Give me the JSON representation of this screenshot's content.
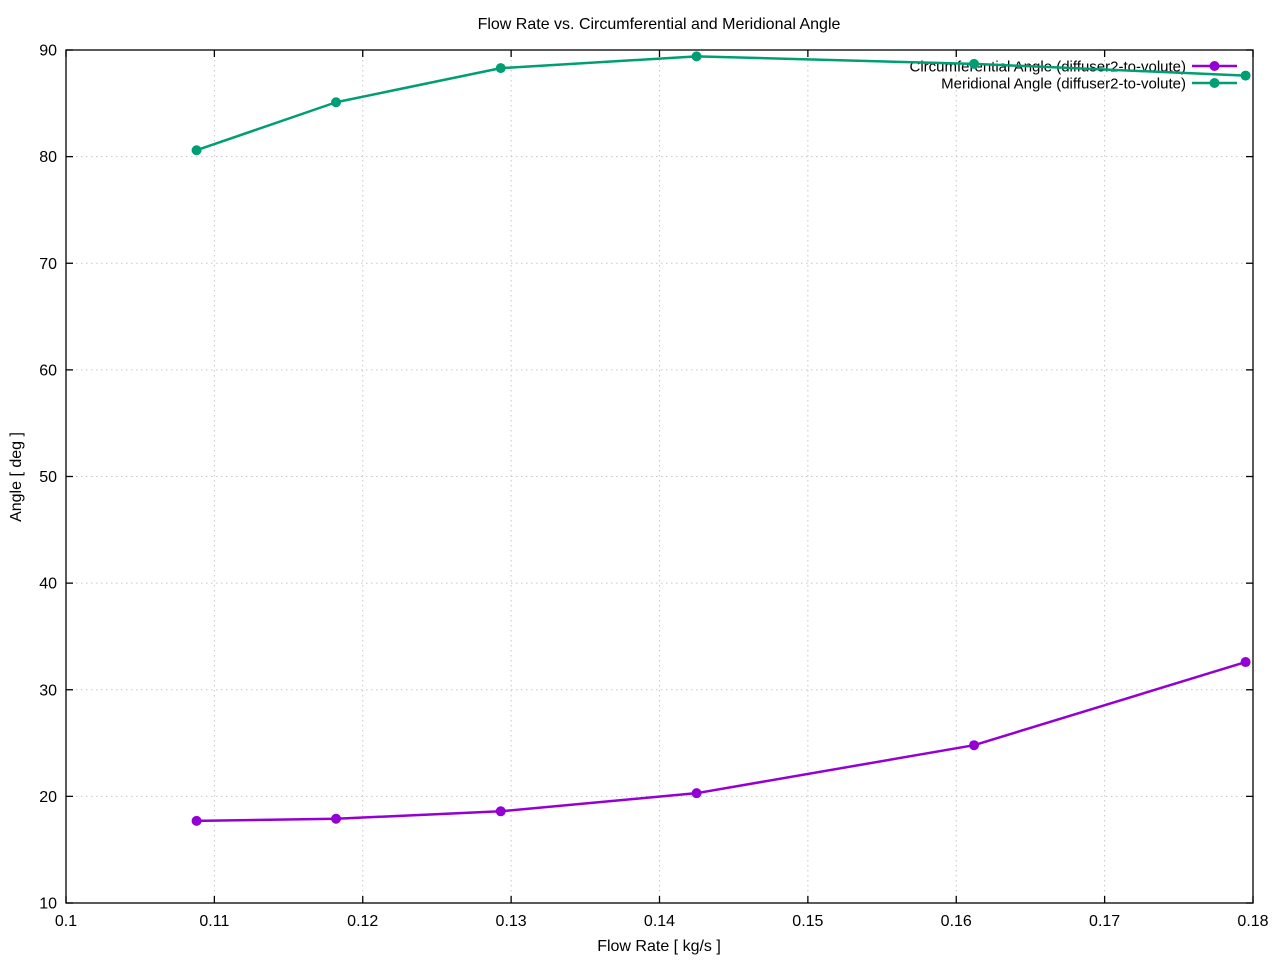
{
  "page": {
    "background_color": "#ffffff"
  },
  "chart_data": {
    "type": "line",
    "title": "Flow Rate vs. Circumferential and Meridional Angle",
    "xlabel": "Flow Rate [ kg/s ]",
    "ylabel": "Angle [ deg ]",
    "xlim": [
      0.1,
      0.18
    ],
    "ylim": [
      10,
      90
    ],
    "xticks": [
      0.1,
      0.11,
      0.12,
      0.13,
      0.14,
      0.15,
      0.16,
      0.17,
      0.18
    ],
    "xtick_labels": [
      "0.1",
      "0.11",
      "0.12",
      "0.13",
      "0.14",
      "0.15",
      "0.16",
      "0.17",
      "0.18"
    ],
    "yticks": [
      10,
      20,
      30,
      40,
      50,
      60,
      70,
      80,
      90
    ],
    "ytick_labels": [
      "10",
      "20",
      "30",
      "40",
      "50",
      "60",
      "70",
      "80",
      "90"
    ],
    "grid": true,
    "grid_style": "dotted",
    "grid_color": "#c8c8c8",
    "axis_color": "#000000",
    "legend_position": "top-right-inside",
    "marker": "filled-circle",
    "series": [
      {
        "name": "Circumferential Angle (diffuser2-to-volute)",
        "color": "#9400d3",
        "points": [
          [
            0.1088,
            17.7
          ],
          [
            0.1182,
            17.9
          ],
          [
            0.1293,
            18.6
          ],
          [
            0.1425,
            20.3
          ],
          [
            0.1612,
            24.8
          ],
          [
            0.1795,
            32.6
          ]
        ]
      },
      {
        "name": "Meridional Angle (diffuser2-to-volute)",
        "color": "#009e73",
        "points": [
          [
            0.1088,
            80.6
          ],
          [
            0.1182,
            85.1
          ],
          [
            0.1293,
            88.3
          ],
          [
            0.1425,
            89.4
          ],
          [
            0.1612,
            88.7
          ],
          [
            0.1795,
            87.6
          ]
        ]
      }
    ]
  }
}
